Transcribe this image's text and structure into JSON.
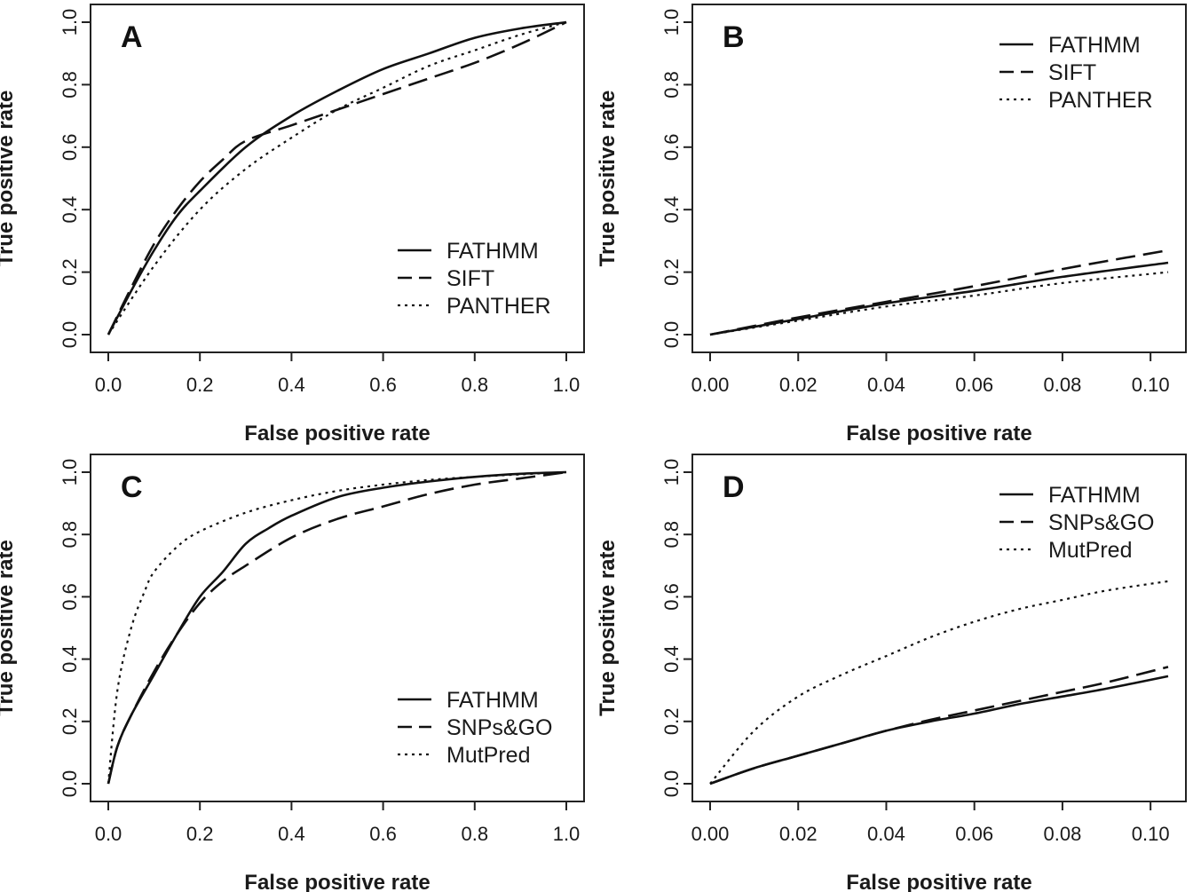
{
  "chart_data": [
    {
      "type": "line",
      "panel": "A",
      "xlabel": "False positive rate",
      "ylabel": "True positive rate",
      "xlim": [
        0,
        1
      ],
      "ylim": [
        0,
        1
      ],
      "xticks": [
        "0.0",
        "0.2",
        "0.4",
        "0.6",
        "0.8",
        "1.0"
      ],
      "yticks": [
        "0.0",
        "0.2",
        "0.4",
        "0.6",
        "0.8",
        "1.0"
      ],
      "legend_position": "bottom-right",
      "series": [
        {
          "name": "FATHMM",
          "style": "solid",
          "x": [
            0,
            0.05,
            0.1,
            0.15,
            0.2,
            0.3,
            0.4,
            0.5,
            0.6,
            0.7,
            0.8,
            0.9,
            1.0
          ],
          "y": [
            0,
            0.14,
            0.27,
            0.38,
            0.46,
            0.6,
            0.7,
            0.78,
            0.85,
            0.9,
            0.95,
            0.98,
            1.0
          ]
        },
        {
          "name": "SIFT",
          "style": "dashed",
          "x": [
            0,
            0.05,
            0.1,
            0.15,
            0.2,
            0.25,
            0.3,
            0.4,
            0.5,
            0.6,
            0.7,
            0.8,
            0.9,
            1.0
          ],
          "y": [
            0,
            0.15,
            0.29,
            0.4,
            0.49,
            0.56,
            0.62,
            0.67,
            0.72,
            0.77,
            0.82,
            0.87,
            0.93,
            1.0
          ]
        },
        {
          "name": "PANTHER",
          "style": "dotted",
          "x": [
            0,
            0.1,
            0.2,
            0.3,
            0.4,
            0.5,
            0.6,
            0.7,
            0.8,
            0.9,
            1.0
          ],
          "y": [
            0,
            0.22,
            0.4,
            0.53,
            0.63,
            0.72,
            0.79,
            0.86,
            0.91,
            0.96,
            1.0
          ]
        }
      ]
    },
    {
      "type": "line",
      "panel": "B",
      "xlabel": "False positive rate",
      "ylabel": "True positive rate",
      "xlim": [
        0,
        0.104
      ],
      "ylim": [
        0,
        1
      ],
      "xticks": [
        "0.00",
        "0.02",
        "0.04",
        "0.06",
        "0.08",
        "0.10"
      ],
      "yticks": [
        "0.0",
        "0.2",
        "0.4",
        "0.6",
        "0.8",
        "1.0"
      ],
      "legend_position": "top-right",
      "series": [
        {
          "name": "FATHMM",
          "style": "solid",
          "x": [
            0,
            0.02,
            0.04,
            0.06,
            0.08,
            0.104
          ],
          "y": [
            0,
            0.05,
            0.1,
            0.14,
            0.185,
            0.23
          ]
        },
        {
          "name": "SIFT",
          "style": "dashed",
          "x": [
            0,
            0.02,
            0.04,
            0.06,
            0.08,
            0.104
          ],
          "y": [
            0,
            0.055,
            0.105,
            0.155,
            0.21,
            0.27
          ]
        },
        {
          "name": "PANTHER",
          "style": "dotted",
          "x": [
            0,
            0.02,
            0.04,
            0.06,
            0.08,
            0.104
          ],
          "y": [
            0,
            0.045,
            0.09,
            0.125,
            0.165,
            0.2
          ]
        }
      ]
    },
    {
      "type": "line",
      "panel": "C",
      "xlabel": "False positive rate",
      "ylabel": "True positive rate",
      "xlim": [
        0,
        1
      ],
      "ylim": [
        0,
        1
      ],
      "xticks": [
        "0.0",
        "0.2",
        "0.4",
        "0.6",
        "0.8",
        "1.0"
      ],
      "yticks": [
        "0.0",
        "0.2",
        "0.4",
        "0.6",
        "0.8",
        "1.0"
      ],
      "legend_position": "bottom-right",
      "series": [
        {
          "name": "FATHMM",
          "style": "solid",
          "x": [
            0,
            0.02,
            0.05,
            0.1,
            0.15,
            0.2,
            0.25,
            0.3,
            0.35,
            0.4,
            0.5,
            0.6,
            0.7,
            0.8,
            0.9,
            1.0
          ],
          "y": [
            0,
            0.12,
            0.22,
            0.35,
            0.48,
            0.6,
            0.68,
            0.77,
            0.82,
            0.86,
            0.92,
            0.95,
            0.97,
            0.985,
            0.995,
            1.0
          ]
        },
        {
          "name": "SNPs&GO",
          "style": "dashed",
          "x": [
            0,
            0.02,
            0.05,
            0.1,
            0.15,
            0.2,
            0.25,
            0.3,
            0.4,
            0.5,
            0.6,
            0.7,
            0.8,
            0.9,
            1.0
          ],
          "y": [
            0,
            0.12,
            0.22,
            0.36,
            0.48,
            0.58,
            0.65,
            0.7,
            0.79,
            0.85,
            0.89,
            0.93,
            0.96,
            0.98,
            1.0
          ]
        },
        {
          "name": "MutPred",
          "style": "dotted",
          "x": [
            0,
            0.02,
            0.05,
            0.08,
            0.1,
            0.15,
            0.2,
            0.3,
            0.4,
            0.5,
            0.6,
            0.7,
            0.8,
            0.9,
            1.0
          ],
          "y": [
            0,
            0.3,
            0.5,
            0.62,
            0.68,
            0.76,
            0.81,
            0.87,
            0.91,
            0.94,
            0.96,
            0.975,
            0.985,
            0.993,
            1.0
          ]
        }
      ]
    },
    {
      "type": "line",
      "panel": "D",
      "xlabel": "False positive rate",
      "ylabel": "True positive rate",
      "xlim": [
        0,
        0.104
      ],
      "ylim": [
        0,
        1
      ],
      "xticks": [
        "0.00",
        "0.02",
        "0.04",
        "0.06",
        "0.08",
        "0.10"
      ],
      "yticks": [
        "0.0",
        "0.2",
        "0.4",
        "0.6",
        "0.8",
        "1.0"
      ],
      "legend_position": "top-right",
      "series": [
        {
          "name": "FATHMM",
          "style": "solid",
          "x": [
            0,
            0.01,
            0.02,
            0.03,
            0.04,
            0.05,
            0.06,
            0.07,
            0.08,
            0.09,
            0.104
          ],
          "y": [
            0,
            0.05,
            0.09,
            0.13,
            0.17,
            0.2,
            0.225,
            0.255,
            0.28,
            0.305,
            0.345
          ]
        },
        {
          "name": "SNPs&GO",
          "style": "dashed",
          "x": [
            0,
            0.01,
            0.02,
            0.03,
            0.04,
            0.05,
            0.06,
            0.07,
            0.08,
            0.09,
            0.104
          ],
          "y": [
            0,
            0.05,
            0.09,
            0.13,
            0.17,
            0.205,
            0.235,
            0.265,
            0.295,
            0.325,
            0.375
          ]
        },
        {
          "name": "MutPred",
          "style": "dotted",
          "x": [
            0,
            0.01,
            0.02,
            0.03,
            0.04,
            0.05,
            0.06,
            0.07,
            0.08,
            0.09,
            0.104
          ],
          "y": [
            0,
            0.17,
            0.28,
            0.35,
            0.41,
            0.47,
            0.52,
            0.56,
            0.59,
            0.62,
            0.65
          ]
        }
      ]
    }
  ]
}
